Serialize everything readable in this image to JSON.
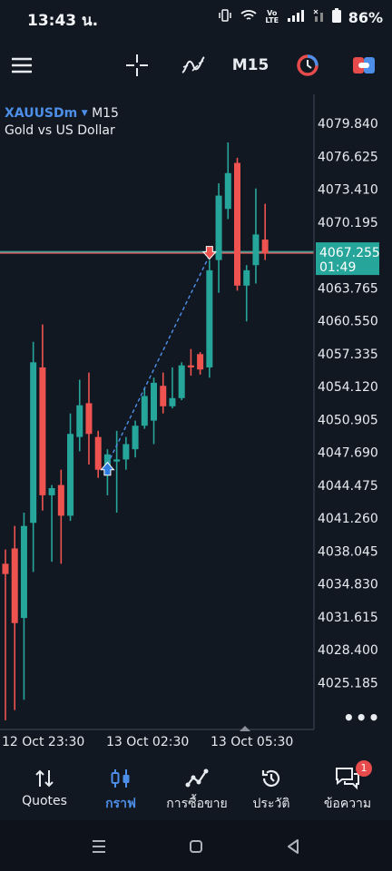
{
  "status": {
    "time": "13:43 น.",
    "network": "Vo LTE",
    "battery": "86%"
  },
  "toolbar": {
    "timeframe": "M15"
  },
  "chart_header": {
    "symbol": "XAUUSDm",
    "timeframe": "M15",
    "description": "Gold vs US Dollar"
  },
  "chart_data": {
    "type": "candlestick",
    "x_ticks": [
      "12 Oct 23:30",
      "13 Oct 02:30",
      "13 Oct 05:30"
    ],
    "y_ticks": [
      4079.84,
      4076.625,
      4073.41,
      4070.195,
      4063.765,
      4060.55,
      4057.335,
      4054.12,
      4050.905,
      4047.69,
      4044.475,
      4041.26,
      4038.045,
      4034.83,
      4031.615,
      4028.4,
      4025.185
    ],
    "ylim": [
      4020.6,
      4082.7
    ],
    "current_price": "4067.255",
    "countdown": "01:49",
    "colors": {
      "up": "#26a69a",
      "down": "#ef5350",
      "price_line": "#9e9e9e",
      "price_label": "#26a69a",
      "trade_line": "#4d8fe8"
    },
    "candles": [
      {
        "o": 4036.8,
        "h": 4038.2,
        "l": 4021.5,
        "c": 4035.8
      },
      {
        "o": 4038.3,
        "h": 4040.5,
        "l": 4022.5,
        "c": 4031.0
      },
      {
        "o": 4031.5,
        "h": 4041.8,
        "l": 4023.5,
        "c": 4040.5
      },
      {
        "o": 4040.8,
        "h": 4058.5,
        "l": 4036.0,
        "c": 4056.5
      },
      {
        "o": 4056.0,
        "h": 4060.2,
        "l": 4042.0,
        "c": 4043.5
      },
      {
        "o": 4043.5,
        "h": 4044.5,
        "l": 4037.0,
        "c": 4044.2
      },
      {
        "o": 4044.5,
        "h": 4046.0,
        "l": 4036.8,
        "c": 4041.5
      },
      {
        "o": 4041.5,
        "h": 4051.5,
        "l": 4041.0,
        "c": 4049.5
      },
      {
        "o": 4049.2,
        "h": 4054.8,
        "l": 4047.8,
        "c": 4052.3
      },
      {
        "o": 4052.5,
        "h": 4055.5,
        "l": 4046.5,
        "c": 4049.5
      },
      {
        "o": 4049.2,
        "h": 4049.8,
        "l": 4045.2,
        "c": 4046.0
      },
      {
        "o": 4046.0,
        "h": 4048.0,
        "l": 4043.5,
        "c": 4047.5
      },
      {
        "o": 4046.8,
        "h": 4049.8,
        "l": 4041.8,
        "c": 4047.0
      },
      {
        "o": 4047.0,
        "h": 4049.2,
        "l": 4046.0,
        "c": 4048.5
      },
      {
        "o": 4048.0,
        "h": 4050.8,
        "l": 4047.2,
        "c": 4050.3
      },
      {
        "o": 4050.3,
        "h": 4054.0,
        "l": 4050.0,
        "c": 4053.2
      },
      {
        "o": 4050.8,
        "h": 4055.0,
        "l": 4048.5,
        "c": 4054.5
      },
      {
        "o": 4054.2,
        "h": 4055.5,
        "l": 4051.5,
        "c": 4052.2
      },
      {
        "o": 4052.2,
        "h": 4056.0,
        "l": 4052.0,
        "c": 4053.0
      },
      {
        "o": 4053.0,
        "h": 4056.5,
        "l": 4052.8,
        "c": 4056.2
      },
      {
        "o": 4056.2,
        "h": 4057.8,
        "l": 4055.2,
        "c": 4056.0
      },
      {
        "o": 4057.3,
        "h": 4057.5,
        "l": 4055.3,
        "c": 4055.8
      },
      {
        "o": 4056.0,
        "h": 4066.5,
        "l": 4055.0,
        "c": 4065.5
      },
      {
        "o": 4066.5,
        "h": 4074.0,
        "l": 4063.3,
        "c": 4072.8
      },
      {
        "o": 4071.5,
        "h": 4078.0,
        "l": 4070.5,
        "c": 4075.0
      },
      {
        "o": 4076.0,
        "h": 4076.5,
        "l": 4063.5,
        "c": 4064.0
      },
      {
        "o": 4064.0,
        "h": 4066.0,
        "l": 4060.5,
        "c": 4065.5
      },
      {
        "o": 4066.0,
        "h": 4073.5,
        "l": 4064.2,
        "c": 4069.0
      },
      {
        "o": 4068.5,
        "h": 4072.0,
        "l": 4066.5,
        "c": 4067.2
      }
    ],
    "trade": {
      "entry_index": 11,
      "entry_price": 4046.0,
      "exit_index": 22,
      "exit_price": 4067.3
    }
  },
  "nav": {
    "items": [
      {
        "label": "Quotes"
      },
      {
        "label": "กราฟ"
      },
      {
        "label": "การซื้อขาย"
      },
      {
        "label": "ประวัติ"
      },
      {
        "label": "ข้อความ",
        "badge": "1"
      }
    ]
  }
}
